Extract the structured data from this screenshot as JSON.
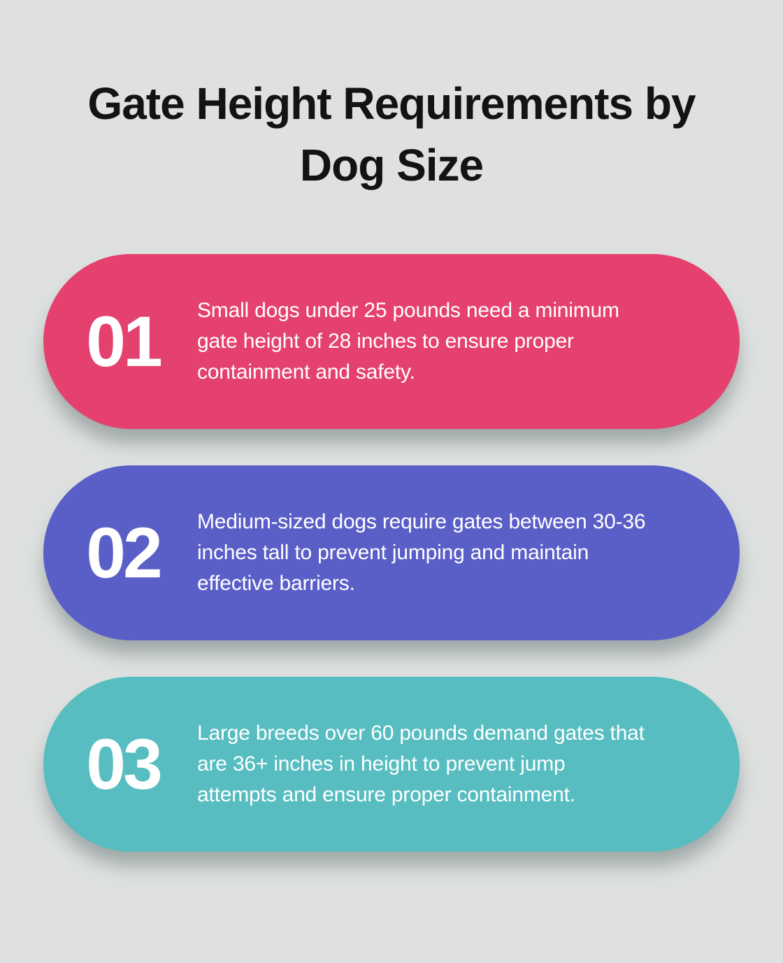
{
  "title": "Gate Height Requirements by\nDog Size",
  "colors": {
    "background": "#dee1e0",
    "title_text": "#131313",
    "number_text": "#ffffff",
    "body_text": "#ffffff",
    "card_small": "#e4416e",
    "card_medium": "#5a5fc8",
    "card_large": "#57bdc0"
  },
  "cards": [
    {
      "number": "01",
      "color": "#e4416e",
      "text": "Small dogs under 25 pounds need a minimum\ngate height of 28 inches to ensure proper\ncontainment and safety."
    },
    {
      "number": "02",
      "color": "#5a5fc8",
      "text": "Medium-sized dogs require gates between 30-36\ninches tall to prevent jumping and maintain\neffective barriers."
    },
    {
      "number": "03",
      "color": "#57bdc0",
      "text": "Large breeds over 60 pounds demand gates that\nare 36+ inches in height to prevent jump\nattempts and ensure proper containment."
    }
  ]
}
